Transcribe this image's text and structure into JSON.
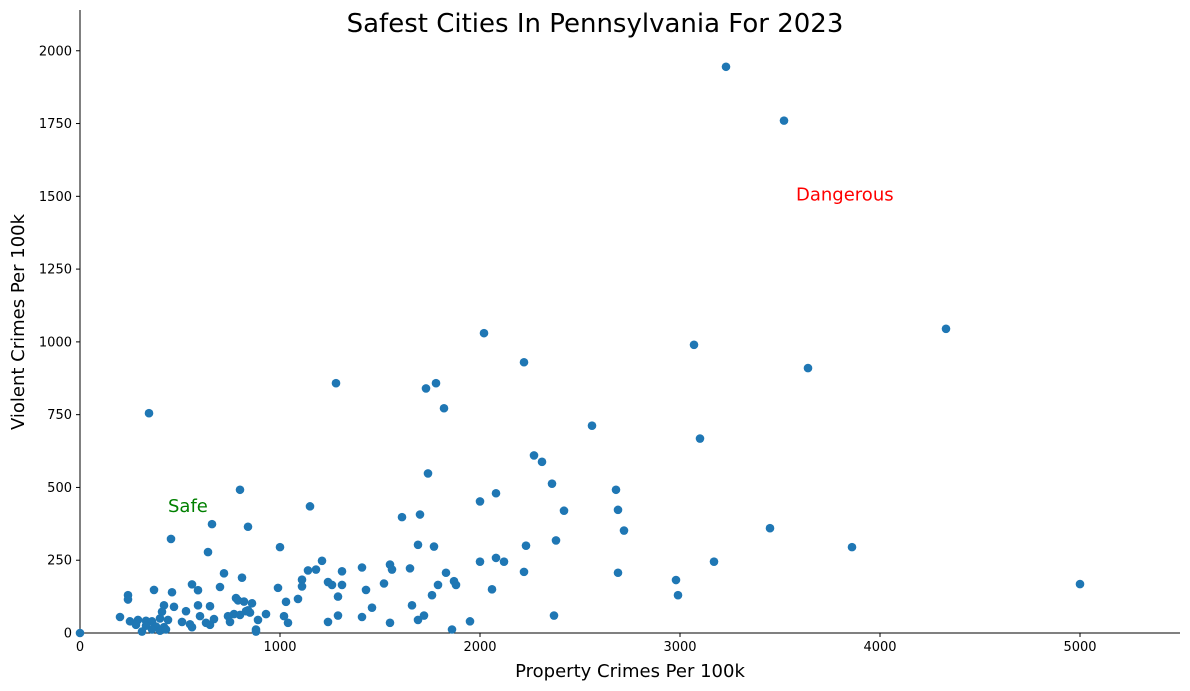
{
  "chart_data": {
    "type": "scatter",
    "title": "Safest Cities In Pennsylvania For 2023",
    "xlabel": "Property Crimes Per 100k",
    "ylabel": "Violent Crimes Per 100k",
    "xlim": [
      0,
      5500
    ],
    "ylim": [
      0,
      2140
    ],
    "xticks": [
      "0",
      "1000",
      "2000",
      "3000",
      "4000",
      "5000"
    ],
    "yticks": [
      "0",
      "250",
      "500",
      "750",
      "1000",
      "1250",
      "1500",
      "1750",
      "2000"
    ],
    "grid": false,
    "marker_color": "#1f77b4",
    "annotations": [
      {
        "text": "Safe",
        "x": 440,
        "y": 415,
        "color": "#008000"
      },
      {
        "text": "Dangerous",
        "x": 3580,
        "y": 1485,
        "color": "#ff0000"
      }
    ],
    "points": [
      [
        0,
        0
      ],
      [
        3230,
        1945
      ],
      [
        3520,
        1760
      ],
      [
        4330,
        1045
      ],
      [
        2020,
        1030
      ],
      [
        3070,
        990
      ],
      [
        2220,
        930
      ],
      [
        3640,
        910
      ],
      [
        1280,
        858
      ],
      [
        1780,
        858
      ],
      [
        1730,
        840
      ],
      [
        1820,
        772
      ],
      [
        345,
        755
      ],
      [
        2560,
        712
      ],
      [
        3100,
        668
      ],
      [
        2270,
        610
      ],
      [
        2310,
        588
      ],
      [
        1740,
        548
      ],
      [
        2360,
        513
      ],
      [
        800,
        492
      ],
      [
        2680,
        492
      ],
      [
        2080,
        480
      ],
      [
        2000,
        452
      ],
      [
        1150,
        435
      ],
      [
        2690,
        423
      ],
      [
        2420,
        420
      ],
      [
        1610,
        398
      ],
      [
        1700,
        407
      ],
      [
        660,
        374
      ],
      [
        840,
        365
      ],
      [
        3450,
        360
      ],
      [
        2720,
        352
      ],
      [
        455,
        323
      ],
      [
        2380,
        318
      ],
      [
        1000,
        295
      ],
      [
        1690,
        303
      ],
      [
        1770,
        297
      ],
      [
        2230,
        300
      ],
      [
        3860,
        295
      ],
      [
        640,
        278
      ],
      [
        1210,
        248
      ],
      [
        2080,
        258
      ],
      [
        2120,
        245
      ],
      [
        2000,
        245
      ],
      [
        3170,
        245
      ],
      [
        1550,
        235
      ],
      [
        1560,
        218
      ],
      [
        1410,
        225
      ],
      [
        1650,
        222
      ],
      [
        1140,
        215
      ],
      [
        1180,
        218
      ],
      [
        1310,
        212
      ],
      [
        1830,
        207
      ],
      [
        2690,
        207
      ],
      [
        2220,
        210
      ],
      [
        720,
        205
      ],
      [
        810,
        190
      ],
      [
        1110,
        183
      ],
      [
        1240,
        175
      ],
      [
        1870,
        178
      ],
      [
        2980,
        182
      ],
      [
        5000,
        168
      ],
      [
        560,
        167
      ],
      [
        1260,
        165
      ],
      [
        1310,
        165
      ],
      [
        1520,
        170
      ],
      [
        1790,
        165
      ],
      [
        1880,
        165
      ],
      [
        700,
        158
      ],
      [
        990,
        155
      ],
      [
        1110,
        160
      ],
      [
        590,
        147
      ],
      [
        370,
        148
      ],
      [
        460,
        140
      ],
      [
        1430,
        148
      ],
      [
        2060,
        150
      ],
      [
        1760,
        130
      ],
      [
        2990,
        130
      ],
      [
        240,
        130
      ],
      [
        240,
        115
      ],
      [
        1290,
        125
      ],
      [
        780,
        120
      ],
      [
        790,
        112
      ],
      [
        820,
        108
      ],
      [
        860,
        102
      ],
      [
        1090,
        117
      ],
      [
        1030,
        107
      ],
      [
        420,
        95
      ],
      [
        470,
        90
      ],
      [
        590,
        95
      ],
      [
        650,
        92
      ],
      [
        1460,
        87
      ],
      [
        1660,
        95
      ],
      [
        530,
        75
      ],
      [
        840,
        78
      ],
      [
        830,
        75
      ],
      [
        850,
        70
      ],
      [
        930,
        65
      ],
      [
        410,
        73
      ],
      [
        770,
        65
      ],
      [
        600,
        58
      ],
      [
        740,
        58
      ],
      [
        800,
        62
      ],
      [
        1020,
        58
      ],
      [
        1290,
        60
      ],
      [
        1410,
        55
      ],
      [
        2370,
        60
      ],
      [
        1720,
        60
      ],
      [
        200,
        55
      ],
      [
        250,
        40
      ],
      [
        290,
        45
      ],
      [
        330,
        42
      ],
      [
        360,
        40
      ],
      [
        400,
        50
      ],
      [
        440,
        45
      ],
      [
        510,
        38
      ],
      [
        630,
        35
      ],
      [
        670,
        48
      ],
      [
        750,
        38
      ],
      [
        890,
        45
      ],
      [
        1040,
        35
      ],
      [
        1240,
        38
      ],
      [
        1550,
        35
      ],
      [
        1690,
        45
      ],
      [
        1950,
        40
      ],
      [
        280,
        28
      ],
      [
        330,
        25
      ],
      [
        380,
        22
      ],
      [
        420,
        20
      ],
      [
        550,
        30
      ],
      [
        560,
        20
      ],
      [
        650,
        28
      ],
      [
        360,
        12
      ],
      [
        400,
        8
      ],
      [
        430,
        12
      ],
      [
        310,
        5
      ],
      [
        880,
        12
      ],
      [
        880,
        5
      ],
      [
        1860,
        12
      ]
    ]
  }
}
